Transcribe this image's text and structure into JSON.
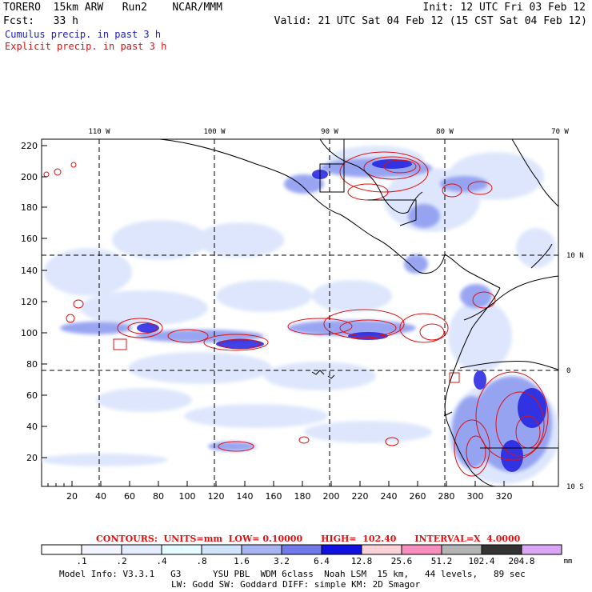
{
  "header": {
    "line1_left": "TORERO  15km ARW   Run2    NCAR/MMM",
    "line1_right": "Init: 12 UTC Fri 03 Feb 12",
    "line2_left": "Fcst:   33 h",
    "line2_right": "Valid: 21 UTC Sat 04 Feb 12 (15 CST Sat 04 Feb 12)",
    "legend_cumulus": "Cumulus precip. in past 3 h",
    "legend_explicit": "Explicit precip. in past 3 h"
  },
  "colors": {
    "cumulus_text": "#2020c0",
    "explicit_text": "#e01010",
    "coast": "#000000"
  },
  "map": {
    "lon_labels": [
      "110 W",
      "100 W",
      "90 W",
      "80 W",
      "70 W"
    ],
    "lat_labels": [
      "10 N",
      "0",
      "10 S"
    ],
    "x_ticks": [
      "20",
      "40",
      "60",
      "80",
      "100",
      "120",
      "140",
      "160",
      "180",
      "200",
      "220",
      "240",
      "260",
      "280",
      "300",
      "320"
    ],
    "y_ticks": [
      "220",
      "200",
      "180",
      "160",
      "140",
      "120",
      "100",
      "80",
      "60",
      "40",
      "20"
    ]
  },
  "contours": {
    "text": "CONTOURS:  UNITS=mm  LOW= 0.10000      HIGH=  102.40      INTERVAL=X  4.0000"
  },
  "colorbar": {
    "labels": [
      ".1",
      ".2",
      ".4",
      ".8",
      "1.6",
      "3.2",
      "6.4",
      "12.8",
      "25.6",
      "51.2",
      "102.4",
      "204.8"
    ],
    "unit": "mm",
    "colors": [
      "#ffffff",
      "#f2f5ff",
      "#e4ecff",
      "#e6fbff",
      "#cfe4fb",
      "#a8b4f2",
      "#7078ea",
      "#4040ee",
      "#1010e0",
      "#fbd2d8",
      "#f78fbe",
      "#b4b4b4",
      "#333333",
      "#dba6f5"
    ]
  },
  "footer": {
    "line1": "Model Info: V3.3.1   G3      YSU PBL  WDM 6class  Noah LSM  15 km,   44 levels,   89 sec",
    "line2": "LW: Godd SW: Goddard DIFF: simple KM: 2D Smagor"
  }
}
